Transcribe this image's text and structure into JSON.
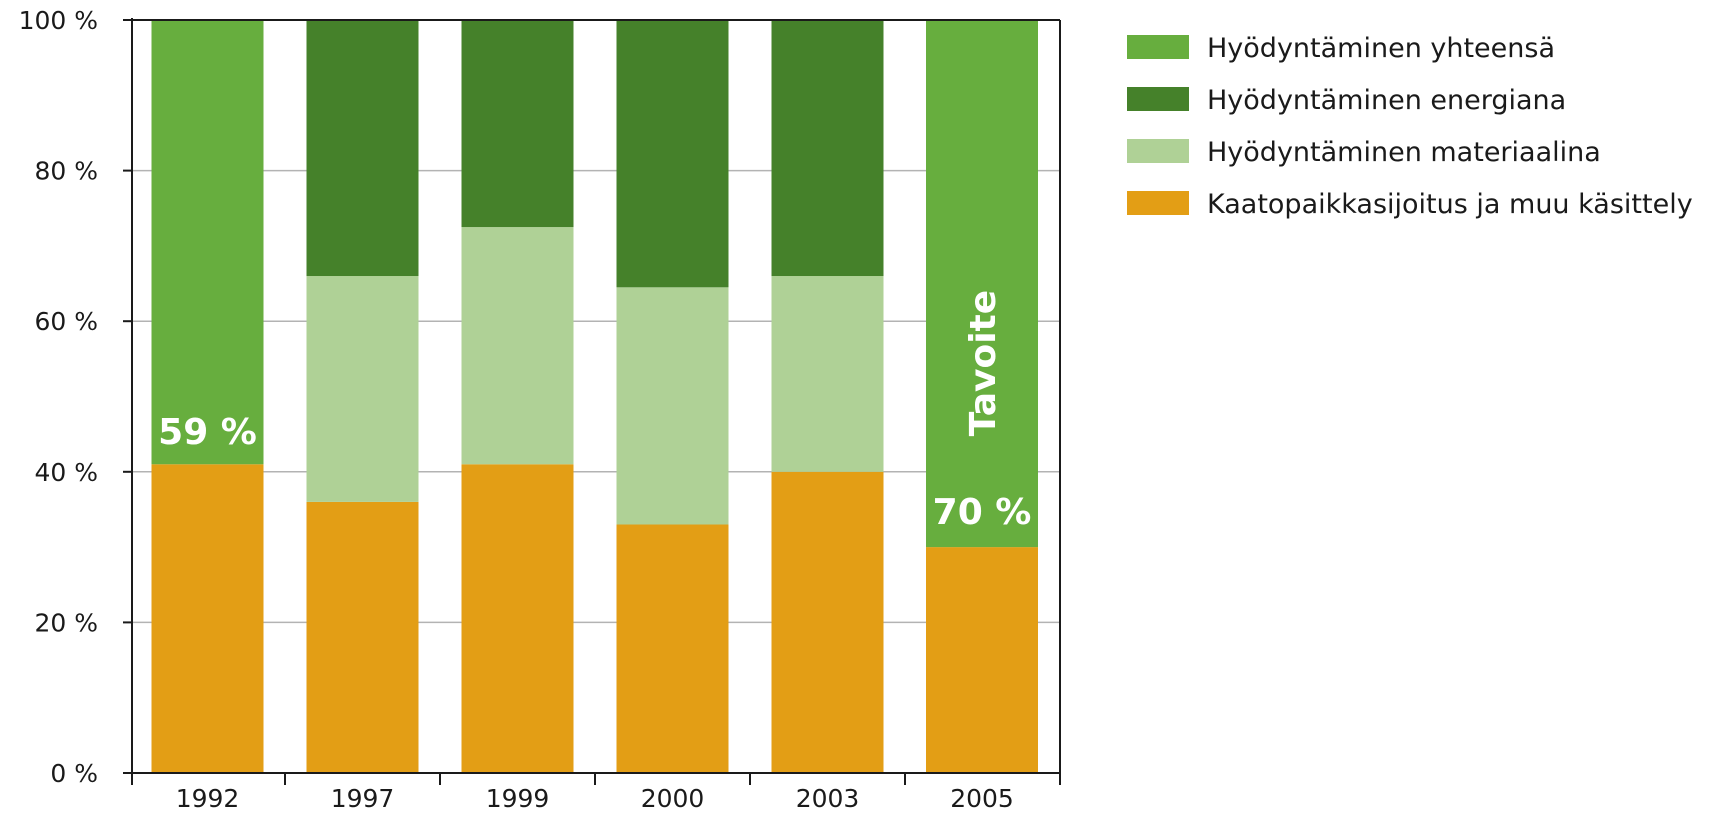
{
  "chart_data": {
    "type": "bar",
    "stacked": true,
    "categories": [
      "1992",
      "1997",
      "1999",
      "2000",
      "2003",
      "2005"
    ],
    "series": [
      {
        "name": "Kaatopaikkasijoitus ja muu käsittely",
        "color": "#e39e15",
        "values": [
          41,
          36,
          41,
          33,
          40,
          30
        ]
      },
      {
        "name": "Hyödyntäminen materiaalina",
        "color": "#afd196",
        "values": [
          0,
          30,
          31.5,
          31.5,
          26,
          0
        ]
      },
      {
        "name": "Hyödyntäminen energiana",
        "color": "#45812a",
        "values": [
          0,
          34,
          27.5,
          35.5,
          34,
          0
        ]
      },
      {
        "name": "Hyödyntäminen yhteensä",
        "color": "#67ae3e",
        "values": [
          59,
          0,
          0,
          0,
          0,
          70
        ]
      }
    ],
    "legend": {
      "position": "right",
      "entries": [
        {
          "label": "Hyödyntäminen yhteensä",
          "color": "#67ae3e"
        },
        {
          "label": "Hyödyntäminen energiana",
          "color": "#45812a"
        },
        {
          "label": "Hyödyntäminen materiaalina",
          "color": "#afd196"
        },
        {
          "label": "Kaatopaikkasijoitus ja muu käsittely",
          "color": "#e39e15"
        }
      ]
    },
    "y_ticks": [
      "0 %",
      "20 %",
      "40 %",
      "60 %",
      "80 %",
      "100 %"
    ],
    "ylim": [
      0,
      100
    ],
    "grid": true,
    "annotations": [
      {
        "category": "1992",
        "text": "59 %"
      },
      {
        "category": "2005",
        "text": "70 %"
      },
      {
        "category": "2005",
        "text": "Tavoite",
        "rotated": true
      }
    ]
  }
}
